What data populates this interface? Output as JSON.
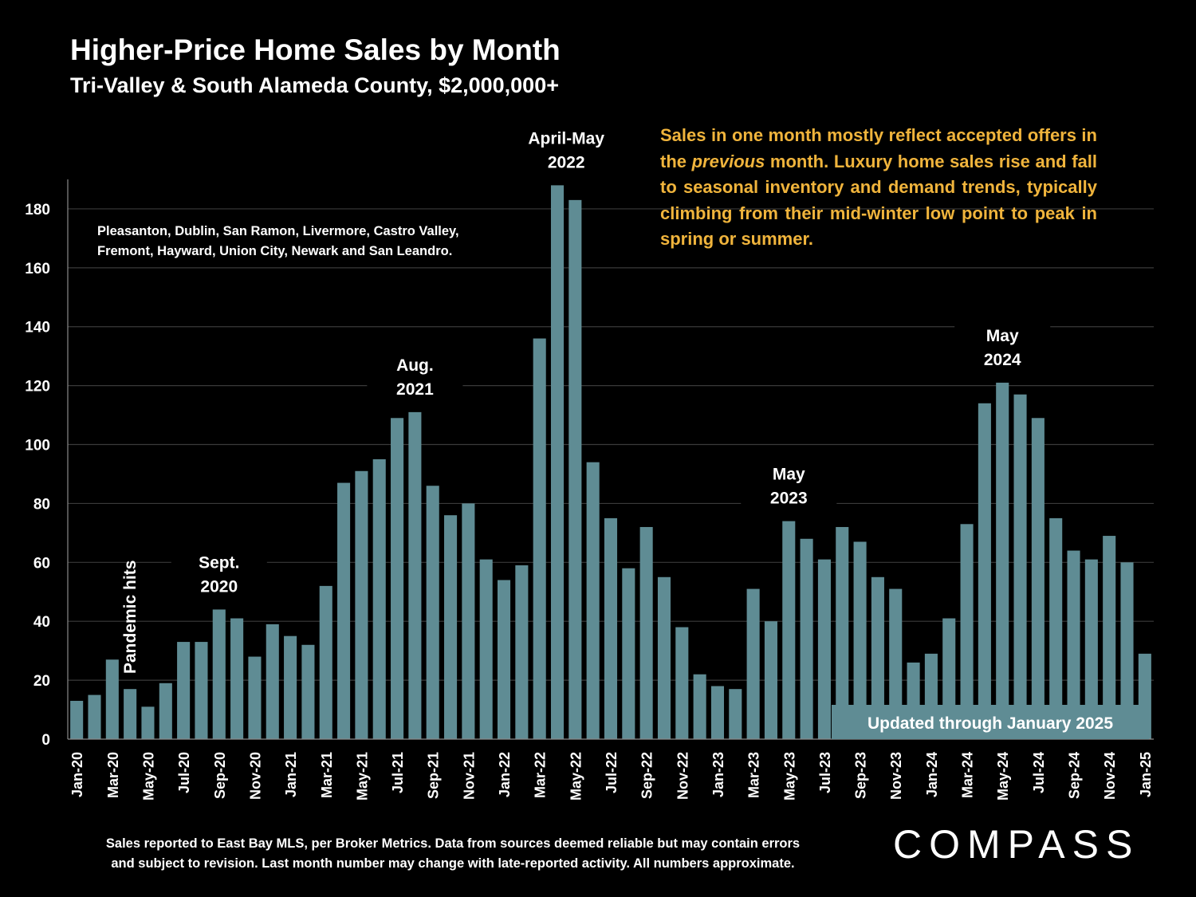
{
  "title": "Higher-Price Home Sales by Month",
  "subtitle": "Tri-Valley & South Alameda County, $2,000,000+",
  "callout": {
    "part1": "Sales in one month mostly reflect accepted offers in the ",
    "italic": "previous",
    "part2": " month. Luxury home sales rise and fall to seasonal inventory and demand trends, typically climbing from their mid-winter low point to peak in spring or summer."
  },
  "cities_note": [
    "Pleasanton, Dublin, San Ramon, Livermore, Castro Valley,",
    "Fremont, Hayward, Union City, Newark and San Leandro."
  ],
  "footnote": [
    "Sales reported to East Bay MLS, per Broker Metrics. Data from sources deemed reliable but may contain errors",
    "and subject to revision. Last month number may change with late-reported activity. All numbers approximate."
  ],
  "logo": "COMPASS",
  "colors": {
    "bar": "#5f8c94",
    "callout_text": "#f0b43c",
    "background": "#000000",
    "gridline": "#3a3a3a"
  },
  "chart_data": {
    "type": "bar",
    "ylim": [
      0,
      190
    ],
    "yticks": [
      0,
      20,
      40,
      60,
      80,
      100,
      120,
      140,
      160,
      180
    ],
    "grid": true,
    "categories": [
      "Jan-20",
      "Feb-20",
      "Mar-20",
      "Apr-20",
      "May-20",
      "Jun-20",
      "Jul-20",
      "Aug-20",
      "Sep-20",
      "Oct-20",
      "Nov-20",
      "Dec-20",
      "Jan-21",
      "Feb-21",
      "Mar-21",
      "Apr-21",
      "May-21",
      "Jun-21",
      "Jul-21",
      "Aug-21",
      "Sep-21",
      "Oct-21",
      "Nov-21",
      "Dec-21",
      "Jan-22",
      "Feb-22",
      "Mar-22",
      "Apr-22",
      "May-22",
      "Jun-22",
      "Jul-22",
      "Aug-22",
      "Sep-22",
      "Oct-22",
      "Nov-22",
      "Dec-22",
      "Jan-23",
      "Feb-23",
      "Mar-23",
      "Apr-23",
      "May-23",
      "Jun-23",
      "Jul-23",
      "Aug-23",
      "Sep-23",
      "Oct-23",
      "Nov-23",
      "Dec-23",
      "Jan-24",
      "Feb-24",
      "Mar-24",
      "Apr-24",
      "May-24",
      "Jun-24",
      "Jul-24",
      "Aug-24",
      "Sep-24",
      "Oct-24",
      "Nov-24",
      "Dec-24",
      "Jan-25"
    ],
    "xtick_labels": [
      "Jan-20",
      "",
      "Mar-20",
      "",
      "May-20",
      "",
      "Jul-20",
      "",
      "Sep-20",
      "",
      "Nov-20",
      "",
      "Jan-21",
      "",
      "Mar-21",
      "",
      "May-21",
      "",
      "Jul-21",
      "",
      "Sep-21",
      "",
      "Nov-21",
      "",
      "Jan-22",
      "",
      "Mar-22",
      "",
      "May-22",
      "",
      "Jul-22",
      "",
      "Sep-22",
      "",
      "Nov-22",
      "",
      "Jan-23",
      "",
      "Mar-23",
      "",
      "May-23",
      "",
      "Jul-23",
      "",
      "Sep-23",
      "",
      "Nov-23",
      "",
      "Jan-24",
      "",
      "Mar-24",
      "",
      "May-24",
      "",
      "Jul-24",
      "",
      "Sep-24",
      "",
      "Nov-24",
      "",
      "Jan-25"
    ],
    "values": [
      13,
      15,
      27,
      17,
      11,
      19,
      33,
      33,
      44,
      41,
      28,
      39,
      35,
      32,
      52,
      87,
      91,
      95,
      109,
      111,
      86,
      76,
      80,
      61,
      54,
      59,
      136,
      188,
      183,
      94,
      75,
      58,
      72,
      55,
      38,
      22,
      18,
      17,
      51,
      40,
      74,
      68,
      61,
      72,
      67,
      55,
      51,
      26,
      29,
      41,
      73,
      114,
      121,
      117,
      109,
      75,
      64,
      61,
      69,
      60,
      29
    ],
    "annotations": [
      {
        "lines": [
          "Pandemic hits"
        ],
        "bar_index": 3,
        "rotated": true
      },
      {
        "lines": [
          "Sept.",
          "2020"
        ],
        "bar_index": 8
      },
      {
        "lines": [
          "Aug.",
          "2021"
        ],
        "bar_index": 19
      },
      {
        "lines": [
          "April-May",
          "2022"
        ],
        "bar_index": 27.5
      },
      {
        "lines": [
          "May",
          "2023"
        ],
        "bar_index": 40
      },
      {
        "lines": [
          "May",
          "2024"
        ],
        "bar_index": 52
      }
    ],
    "update_label": "Updated through January 2025"
  }
}
